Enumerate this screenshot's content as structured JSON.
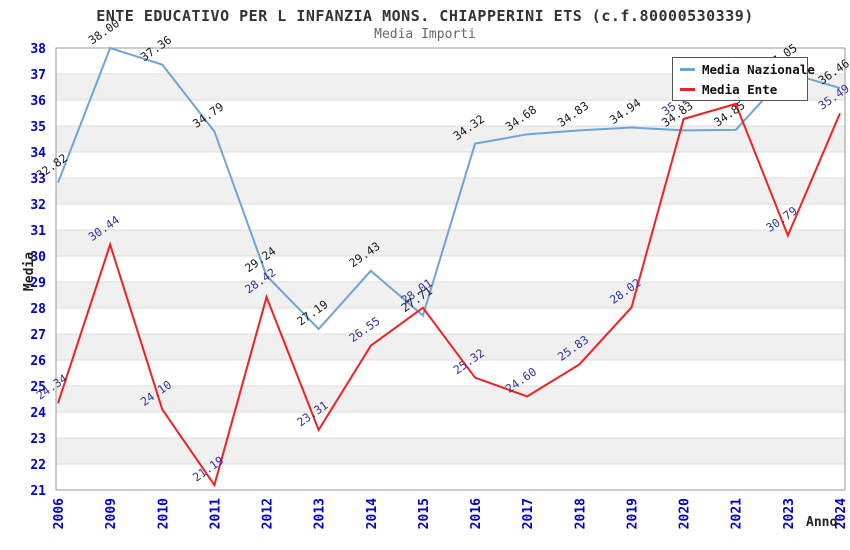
{
  "header": {
    "title": "ENTE EDUCATIVO PER L INFANZIA MONS. CHIAPPERINI ETS (c.f.80000530339)",
    "subtitle": "Media Importi"
  },
  "axes": {
    "y_title": "Media",
    "x_title": "Anno",
    "y_tick_labels": [
      21,
      22,
      23,
      24,
      25,
      26,
      27,
      28,
      29,
      30,
      31,
      32,
      33,
      34,
      35,
      36,
      37,
      38
    ]
  },
  "legend": {
    "position": "top-right",
    "items": [
      {
        "label": "Media Nazionale"
      },
      {
        "label": "Media Ente"
      }
    ]
  },
  "chart_data": {
    "type": "line",
    "title": "ENTE EDUCATIVO PER L INFANZIA MONS. CHIAPPERINI ETS (c.f.80000530339)",
    "subtitle": "Media Importi",
    "xlabel": "Anno",
    "ylabel": "Media",
    "ylim": [
      21,
      38
    ],
    "ytick_step": 1,
    "grid": "horizontal-lines-with-alternating-bands",
    "legend_position": "top-right-inside",
    "categories": [
      "2006",
      "2009",
      "2010",
      "2011",
      "2012",
      "2013",
      "2014",
      "2015",
      "2016",
      "2017",
      "2018",
      "2019",
      "2020",
      "2021",
      "2023",
      "2024"
    ],
    "series": [
      {
        "name": "Media Nazionale",
        "color": "#6FA3D8",
        "label_color": "#1a1a1a",
        "values": [
          32.82,
          38.0,
          37.36,
          34.79,
          29.24,
          27.19,
          29.43,
          27.71,
          34.32,
          34.68,
          34.83,
          34.94,
          34.83,
          34.85,
          37.05,
          36.46
        ]
      },
      {
        "name": "Media Ente",
        "color": "#EE2222",
        "label_color": "#333399",
        "values": [
          24.34,
          30.44,
          24.1,
          21.19,
          28.42,
          23.31,
          26.55,
          28.01,
          25.32,
          24.6,
          25.83,
          28.02,
          35.27,
          35.85,
          30.79,
          35.49
        ],
        "note": "value labels for 2020 and 2021 are partially hidden behind the legend box; values estimated from line position"
      }
    ],
    "style": {
      "band_color": "#F0F0F0",
      "grid_color": "#DDDDDD",
      "border_color": "#999999",
      "tick_label_color": "#0000CC",
      "point_label_rotation_deg": -35
    }
  }
}
